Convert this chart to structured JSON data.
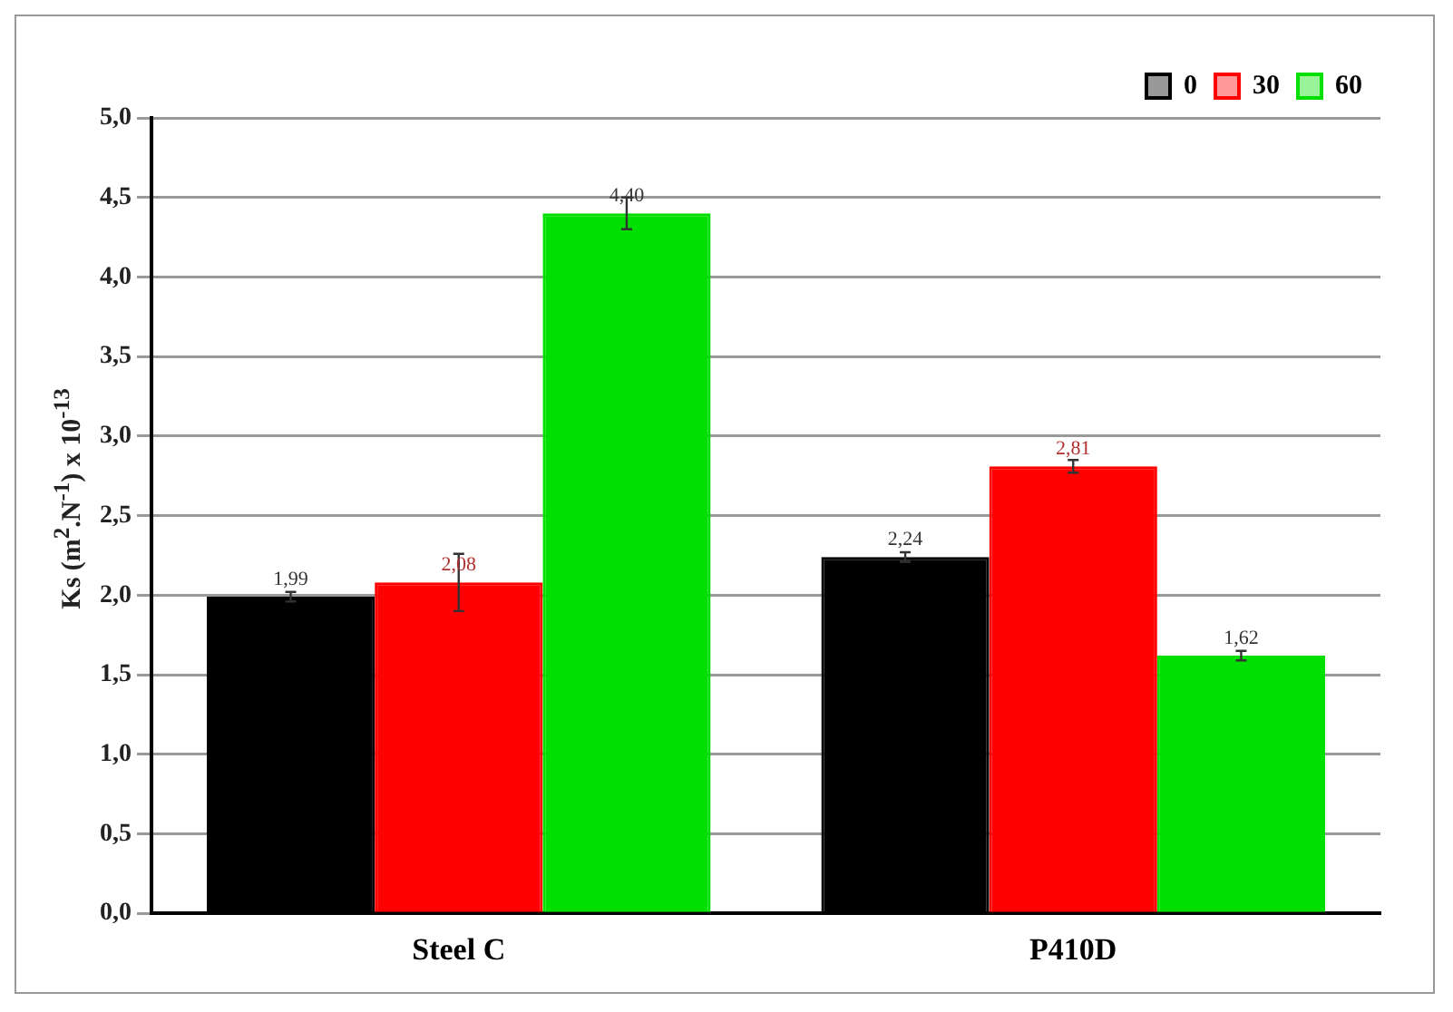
{
  "chart_data": {
    "type": "bar",
    "ylabel": "Ks (m$^{2}$.N$^{-1}$) x 10$^{-13}$",
    "categories": [
      "Steel C",
      "P410D"
    ],
    "series": [
      {
        "name": "0",
        "color": "#000000",
        "values": [
          1.99,
          2.24
        ],
        "value_labels": [
          "1,99",
          "2,24"
        ],
        "errors": [
          0.03,
          0.03
        ]
      },
      {
        "name": "30",
        "color": "#ff0000",
        "values": [
          2.08,
          2.81
        ],
        "value_labels": [
          "2,08",
          "2,81"
        ],
        "errors": [
          0.18,
          0.04
        ]
      },
      {
        "name": "60",
        "color": "#00e000",
        "values": [
          4.4,
          1.62
        ],
        "value_labels": [
          "4,40",
          "1,62"
        ],
        "errors": [
          0.1,
          0.03
        ]
      }
    ],
    "ylim": [
      0,
      5
    ],
    "yticks": [
      {
        "value": 0,
        "label": "0,0"
      },
      {
        "value": 0.5,
        "label": "0,5"
      },
      {
        "value": 1,
        "label": "1,0"
      },
      {
        "value": 1.5,
        "label": "1,5"
      },
      {
        "value": 2,
        "label": "2,0"
      },
      {
        "value": 2.5,
        "label": "2,5"
      },
      {
        "value": 3,
        "label": "3,0"
      },
      {
        "value": 3.5,
        "label": "3,5"
      },
      {
        "value": 4,
        "label": "4,0"
      },
      {
        "value": 4.5,
        "label": "4,5"
      },
      {
        "value": 5,
        "label": "5,0"
      }
    ],
    "grid": "y",
    "legend": "top right"
  }
}
